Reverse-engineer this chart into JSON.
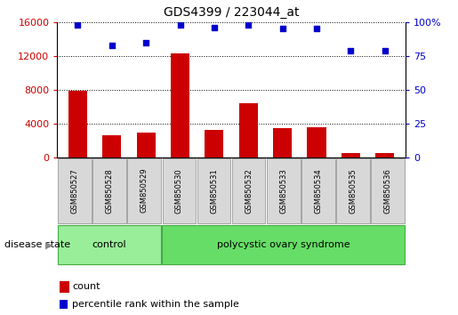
{
  "title": "GDS4399 / 223044_at",
  "samples": [
    "GSM850527",
    "GSM850528",
    "GSM850529",
    "GSM850530",
    "GSM850531",
    "GSM850532",
    "GSM850533",
    "GSM850534",
    "GSM850535",
    "GSM850536"
  ],
  "counts": [
    7900,
    2600,
    2900,
    12300,
    3300,
    6400,
    3500,
    3600,
    500,
    500
  ],
  "percentiles": [
    98,
    83,
    85,
    98,
    96,
    98,
    95,
    95,
    79,
    79
  ],
  "bar_color": "#cc0000",
  "dot_color": "#0000cc",
  "ylim_left": [
    0,
    16000
  ],
  "ylim_right": [
    0,
    100
  ],
  "yticks_left": [
    0,
    4000,
    8000,
    12000,
    16000
  ],
  "yticks_right": [
    0,
    25,
    50,
    75,
    100
  ],
  "groups": [
    {
      "label": "control",
      "n_samples": 3,
      "color": "#99ee99"
    },
    {
      "label": "polycystic ovary syndrome",
      "n_samples": 7,
      "color": "#66dd66"
    }
  ],
  "disease_state_label": "disease state",
  "legend_count_label": "count",
  "legend_percentile_label": "percentile rank within the sample",
  "tick_label_color_left": "#cc0000",
  "tick_label_color_right": "#0000cc",
  "tick_area_color": "#d8d8d8",
  "group_border_color": "#44aa44",
  "control_color": "#99ee99",
  "pcos_color": "#66dd66"
}
